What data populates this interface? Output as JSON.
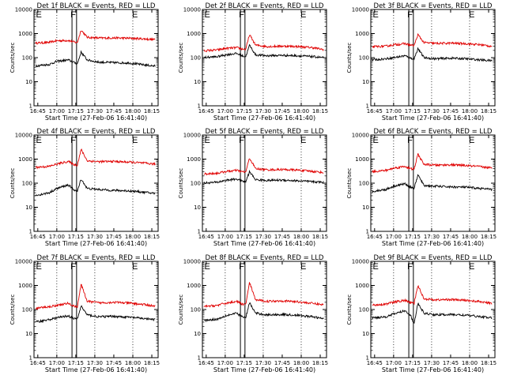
{
  "figure": {
    "ylabel": "Counts/sec",
    "xlabel": "Start Time (27-Feb-06 16:41:40)",
    "x_ticks": [
      "16:45",
      "17:00",
      "17:15",
      "17:30",
      "17:45",
      "18:00",
      "18:15"
    ],
    "y_ticks": [
      "1",
      "10",
      "100",
      "1000",
      "10000"
    ],
    "markers": [
      "E",
      "F",
      "E"
    ],
    "colors": {
      "events": "#000000",
      "lld": "#e00000"
    }
  },
  "chart_data": [
    {
      "type": "line",
      "title": "Det 1f BLACK = Events, RED = LLD",
      "ylim": [
        1,
        10000
      ],
      "yscale": "log",
      "series": [
        {
          "x": [
            16.7,
            16.9,
            17.0,
            17.15,
            17.22,
            17.27,
            17.32,
            17.4,
            17.55,
            17.75,
            17.95,
            18.15,
            18.28
          ],
          "values": [
            45,
            52,
            70,
            80,
            65,
            55,
            170,
            80,
            65,
            62,
            60,
            50,
            45
          ]
        },
        {
          "x": [
            16.7,
            16.9,
            17.0,
            17.15,
            17.22,
            17.27,
            17.32,
            17.4,
            17.55,
            17.75,
            17.95,
            18.15,
            18.28
          ],
          "values": [
            400,
            430,
            500,
            520,
            450,
            420,
            1400,
            700,
            650,
            660,
            640,
            600,
            560
          ]
        }
      ]
    },
    {
      "type": "line",
      "title": "Det 2f BLACK = Events, RED = LLD",
      "ylim": [
        1,
        10000
      ],
      "yscale": "log",
      "series": [
        {
          "x": [
            16.7,
            16.9,
            17.0,
            17.15,
            17.22,
            17.27,
            17.32,
            17.4,
            17.55,
            17.75,
            17.95,
            18.15,
            18.28
          ],
          "values": [
            100,
            110,
            130,
            150,
            120,
            110,
            330,
            130,
            120,
            125,
            120,
            110,
            100
          ]
        },
        {
          "x": [
            16.7,
            16.9,
            17.0,
            17.15,
            17.22,
            17.27,
            17.32,
            17.4,
            17.55,
            17.75,
            17.95,
            18.15,
            18.28
          ],
          "values": [
            190,
            210,
            240,
            260,
            230,
            220,
            900,
            330,
            290,
            300,
            290,
            260,
            220
          ]
        }
      ]
    },
    {
      "type": "line",
      "title": "Det 3f BLACK = Events, RED = LLD",
      "ylim": [
        1,
        10000
      ],
      "yscale": "log",
      "series": [
        {
          "x": [
            16.7,
            16.9,
            17.0,
            17.15,
            17.22,
            17.27,
            17.32,
            17.4,
            17.55,
            17.75,
            17.95,
            18.15,
            18.28
          ],
          "values": [
            80,
            90,
            100,
            120,
            95,
            90,
            240,
            100,
            90,
            95,
            90,
            80,
            75
          ]
        },
        {
          "x": [
            16.7,
            16.9,
            17.0,
            17.15,
            17.22,
            17.27,
            17.32,
            17.4,
            17.55,
            17.75,
            17.95,
            18.15,
            18.28
          ],
          "values": [
            280,
            300,
            340,
            380,
            330,
            320,
            900,
            420,
            390,
            400,
            380,
            340,
            300
          ]
        }
      ]
    },
    {
      "type": "line",
      "title": "Det 4f BLACK = Events, RED = LLD",
      "ylim": [
        1,
        10000
      ],
      "yscale": "log",
      "series": [
        {
          "x": [
            16.7,
            16.9,
            17.0,
            17.15,
            17.22,
            17.27,
            17.32,
            17.4,
            17.55,
            17.75,
            17.95,
            18.15,
            18.28
          ],
          "values": [
            30,
            40,
            60,
            85,
            55,
            45,
            150,
            60,
            55,
            50,
            48,
            42,
            38
          ]
        },
        {
          "x": [
            16.7,
            16.9,
            17.0,
            17.15,
            17.22,
            17.27,
            17.32,
            17.4,
            17.55,
            17.75,
            17.95,
            18.15,
            18.28
          ],
          "values": [
            450,
            500,
            620,
            800,
            600,
            560,
            2500,
            850,
            780,
            800,
            750,
            680,
            620
          ]
        }
      ]
    },
    {
      "type": "line",
      "title": "Det 5f BLACK = Events, RED = LLD",
      "ylim": [
        1,
        10000
      ],
      "yscale": "log",
      "series": [
        {
          "x": [
            16.7,
            16.9,
            17.0,
            17.15,
            17.22,
            17.27,
            17.32,
            17.4,
            17.55,
            17.75,
            17.95,
            18.15,
            18.28
          ],
          "values": [
            100,
            110,
            130,
            150,
            120,
            115,
            300,
            140,
            130,
            135,
            125,
            115,
            110
          ]
        },
        {
          "x": [
            16.7,
            16.9,
            17.0,
            17.15,
            17.22,
            17.27,
            17.32,
            17.4,
            17.55,
            17.75,
            17.95,
            18.15,
            18.28
          ],
          "values": [
            240,
            260,
            300,
            340,
            300,
            290,
            1100,
            400,
            360,
            370,
            350,
            310,
            280
          ]
        }
      ]
    },
    {
      "type": "line",
      "title": "Det 6f BLACK = Events, RED = LLD",
      "ylim": [
        1,
        10000
      ],
      "yscale": "log",
      "series": [
        {
          "x": [
            16.7,
            16.9,
            17.0,
            17.15,
            17.22,
            17.27,
            17.32,
            17.4,
            17.55,
            17.75,
            17.95,
            18.15,
            18.28
          ],
          "values": [
            45,
            55,
            75,
            95,
            70,
            60,
            220,
            80,
            75,
            70,
            68,
            60,
            55
          ]
        },
        {
          "x": [
            16.7,
            16.9,
            17.0,
            17.15,
            17.22,
            17.27,
            17.32,
            17.4,
            17.55,
            17.75,
            17.95,
            18.15,
            18.28
          ],
          "values": [
            300,
            340,
            420,
            500,
            400,
            380,
            1600,
            600,
            560,
            580,
            540,
            480,
            430
          ]
        }
      ]
    },
    {
      "type": "line",
      "title": "Det 7f BLACK = Events, RED = LLD",
      "ylim": [
        1,
        10000
      ],
      "yscale": "log",
      "series": [
        {
          "x": [
            16.7,
            16.9,
            17.0,
            17.15,
            17.22,
            17.27,
            17.32,
            17.4,
            17.55,
            17.75,
            17.95,
            18.15,
            18.28
          ],
          "values": [
            30,
            38,
            45,
            55,
            42,
            40,
            140,
            60,
            50,
            52,
            48,
            42,
            38
          ]
        },
        {
          "x": [
            16.7,
            16.9,
            17.0,
            17.15,
            17.22,
            17.27,
            17.32,
            17.4,
            17.55,
            17.75,
            17.95,
            18.15,
            18.28
          ],
          "values": [
            110,
            130,
            150,
            180,
            140,
            130,
            1100,
            220,
            190,
            200,
            185,
            160,
            140
          ]
        }
      ]
    },
    {
      "type": "line",
      "title": "Det 8f BLACK = Events, RED = LLD",
      "ylim": [
        1,
        10000
      ],
      "yscale": "log",
      "series": [
        {
          "x": [
            16.7,
            16.9,
            17.0,
            17.15,
            17.22,
            17.27,
            17.32,
            17.4,
            17.55,
            17.75,
            17.95,
            18.15,
            18.28
          ],
          "values": [
            35,
            40,
            55,
            70,
            50,
            45,
            190,
            70,
            60,
            62,
            58,
            50,
            42
          ]
        },
        {
          "x": [
            16.7,
            16.9,
            17.0,
            17.15,
            17.22,
            17.27,
            17.32,
            17.4,
            17.55,
            17.75,
            17.95,
            18.15,
            18.28
          ],
          "values": [
            130,
            150,
            180,
            220,
            170,
            160,
            1300,
            250,
            220,
            230,
            210,
            180,
            160
          ]
        }
      ]
    },
    {
      "type": "line",
      "title": "Det 9f BLACK = Events, RED = LLD",
      "ylim": [
        1,
        10000
      ],
      "yscale": "log",
      "series": [
        {
          "x": [
            16.7,
            16.9,
            17.0,
            17.15,
            17.22,
            17.27,
            17.32,
            17.4,
            17.55,
            17.75,
            17.95,
            18.15,
            18.28
          ],
          "values": [
            45,
            50,
            65,
            90,
            60,
            25,
            180,
            70,
            60,
            62,
            58,
            50,
            45
          ]
        },
        {
          "x": [
            16.7,
            16.9,
            17.0,
            17.15,
            17.22,
            17.27,
            17.32,
            17.4,
            17.55,
            17.75,
            17.95,
            18.15,
            18.28
          ],
          "values": [
            150,
            170,
            200,
            240,
            190,
            180,
            1000,
            280,
            250,
            260,
            240,
            210,
            180
          ]
        }
      ]
    }
  ]
}
